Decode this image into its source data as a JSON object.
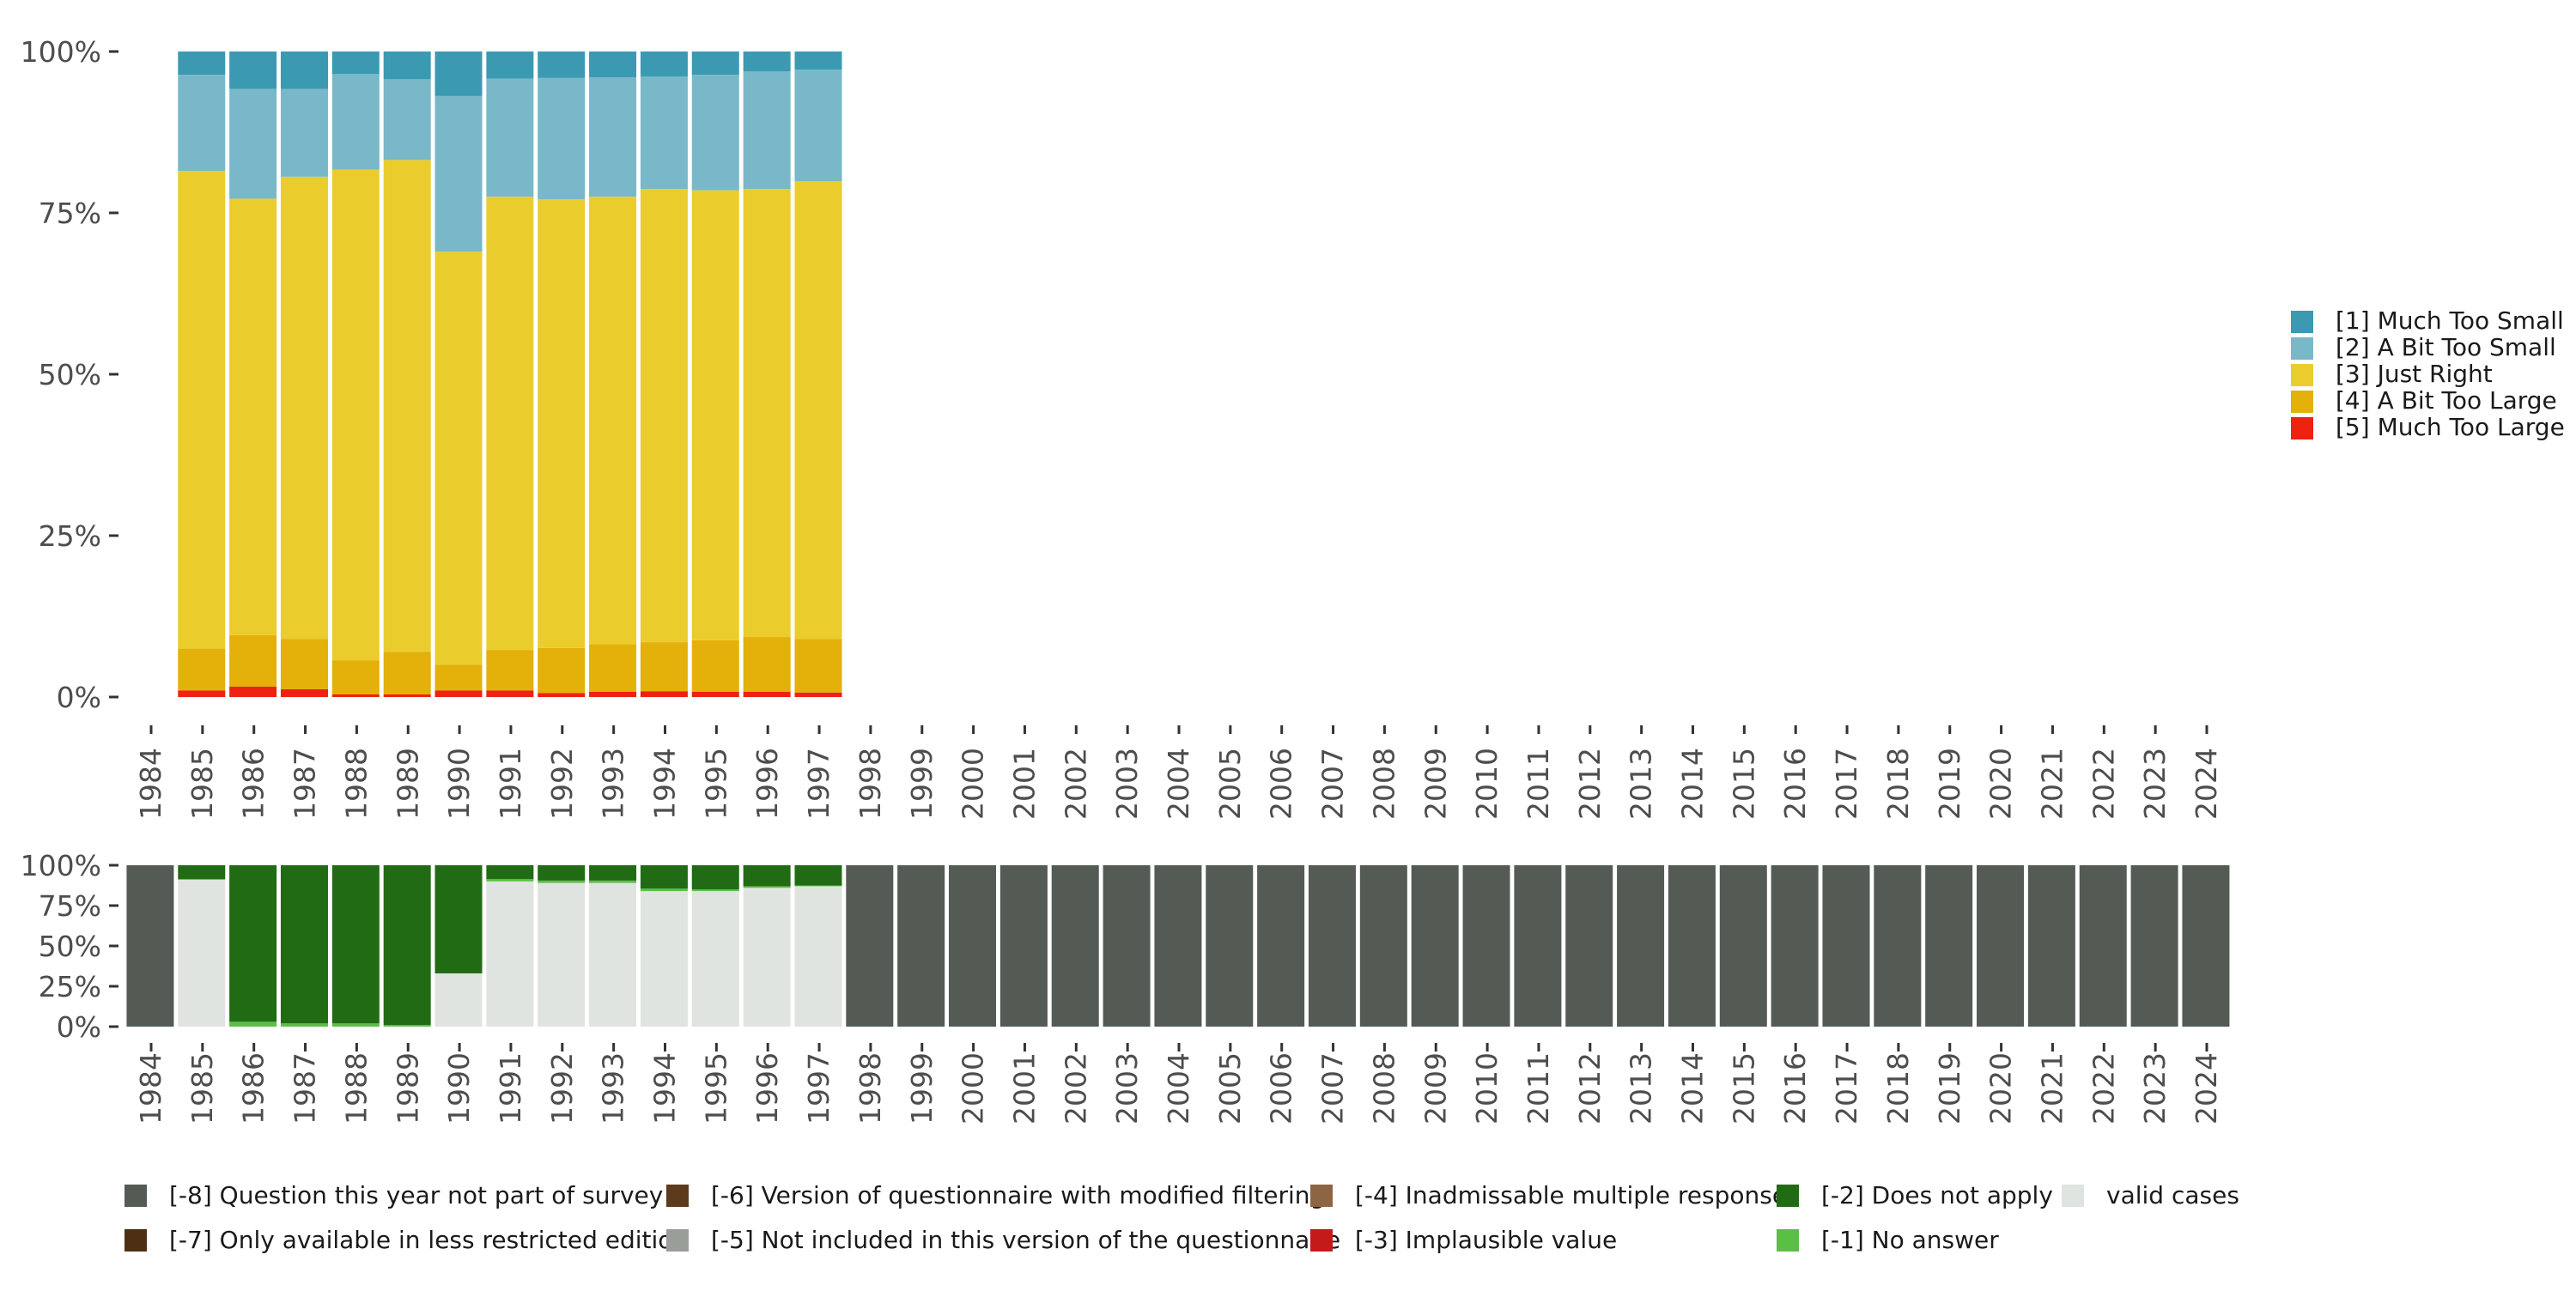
{
  "chart_data": [
    {
      "type": "bar",
      "stacked": true,
      "normalized": true,
      "title": "",
      "xlabel": "",
      "ylabel": "",
      "ylim": [
        0,
        100
      ],
      "y_tick_labels": [
        "0%",
        "25%",
        "50%",
        "75%",
        "100%"
      ],
      "categories": [
        "1984",
        "1985",
        "1986",
        "1987",
        "1988",
        "1989",
        "1990",
        "1991",
        "1992",
        "1993",
        "1994",
        "1995",
        "1996",
        "1997",
        "1998",
        "1999",
        "2000",
        "2001",
        "2002",
        "2003",
        "2004",
        "2005",
        "2006",
        "2007",
        "2008",
        "2009",
        "2010",
        "2011",
        "2012",
        "2013",
        "2014",
        "2015",
        "2016",
        "2017",
        "2018",
        "2019",
        "2020",
        "2021",
        "2022",
        "2023",
        "2024"
      ],
      "legend_position": "right",
      "series": [
        {
          "name": "[5] Much Too Large",
          "color": "#ee2211",
          "values": [
            null,
            1.0,
            1.6,
            1.2,
            0.4,
            0.4,
            1.0,
            1.0,
            0.6,
            0.8,
            0.9,
            0.8,
            0.8,
            0.7,
            null,
            null,
            null,
            null,
            null,
            null,
            null,
            null,
            null,
            null,
            null,
            null,
            null,
            null,
            null,
            null,
            null,
            null,
            null,
            null,
            null,
            null,
            null,
            null,
            null,
            null,
            null
          ]
        },
        {
          "name": "[4] A Bit Too Large",
          "color": "#e3b10a",
          "values": [
            null,
            6.5,
            8.0,
            7.8,
            5.3,
            6.6,
            4.0,
            6.3,
            7.0,
            7.4,
            7.6,
            8.0,
            8.5,
            8.3,
            null,
            null,
            null,
            null,
            null,
            null,
            null,
            null,
            null,
            null,
            null,
            null,
            null,
            null,
            null,
            null,
            null,
            null,
            null,
            null,
            null,
            null,
            null,
            null,
            null,
            null,
            null
          ]
        },
        {
          "name": "[3] Just Right",
          "color": "#eacd2c",
          "values": [
            null,
            74.0,
            67.6,
            71.6,
            76.0,
            76.2,
            64.0,
            70.2,
            69.5,
            69.3,
            70.2,
            69.7,
            69.4,
            70.9,
            null,
            null,
            null,
            null,
            null,
            null,
            null,
            null,
            null,
            null,
            null,
            null,
            null,
            null,
            null,
            null,
            null,
            null,
            null,
            null,
            null,
            null,
            null,
            null,
            null,
            null,
            null
          ]
        },
        {
          "name": "[2] A Bit Too Small",
          "color": "#79b8c8",
          "values": [
            null,
            14.9,
            17.0,
            13.6,
            14.8,
            12.5,
            24.1,
            18.3,
            18.8,
            18.5,
            17.4,
            17.9,
            18.2,
            17.3,
            null,
            null,
            null,
            null,
            null,
            null,
            null,
            null,
            null,
            null,
            null,
            null,
            null,
            null,
            null,
            null,
            null,
            null,
            null,
            null,
            null,
            null,
            null,
            null,
            null,
            null,
            null
          ]
        },
        {
          "name": "[1] Much Too Small",
          "color": "#3b9ab2",
          "values": [
            null,
            3.6,
            5.8,
            5.8,
            3.5,
            4.3,
            6.9,
            4.2,
            4.1,
            4.0,
            3.9,
            3.6,
            3.1,
            2.8,
            null,
            null,
            null,
            null,
            null,
            null,
            null,
            null,
            null,
            null,
            null,
            null,
            null,
            null,
            null,
            null,
            null,
            null,
            null,
            null,
            null,
            null,
            null,
            null,
            null,
            null,
            null
          ]
        }
      ]
    },
    {
      "type": "bar",
      "stacked": true,
      "normalized": true,
      "title": "",
      "xlabel": "",
      "ylabel": "",
      "ylim": [
        0,
        100
      ],
      "y_tick_labels": [
        "0%",
        "25%",
        "50%",
        "75%",
        "100%"
      ],
      "categories": [
        "1984",
        "1985",
        "1986",
        "1987",
        "1988",
        "1989",
        "1990",
        "1991",
        "1992",
        "1993",
        "1994",
        "1995",
        "1996",
        "1997",
        "1998",
        "1999",
        "2000",
        "2001",
        "2002",
        "2003",
        "2004",
        "2005",
        "2006",
        "2007",
        "2008",
        "2009",
        "2010",
        "2011",
        "2012",
        "2013",
        "2014",
        "2015",
        "2016",
        "2017",
        "2018",
        "2019",
        "2020",
        "2021",
        "2022",
        "2023",
        "2024"
      ],
      "legend_position": "bottom",
      "series": [
        {
          "name": "valid cases",
          "color": "#e0e4e0",
          "values": [
            0,
            91,
            0,
            0,
            0,
            0,
            33,
            90,
            89,
            89,
            84,
            84,
            86,
            87,
            0,
            0,
            0,
            0,
            0,
            0,
            0,
            0,
            0,
            0,
            0,
            0,
            0,
            0,
            0,
            0,
            0,
            0,
            0,
            0,
            0,
            0,
            0,
            0,
            0,
            0,
            0
          ]
        },
        {
          "name": "[-1] No answer",
          "color": "#5cbf45",
          "values": [
            0,
            0.5,
            3,
            2,
            2,
            1,
            0,
            1.5,
            1.5,
            1.5,
            1.5,
            1,
            1,
            0.5,
            0,
            0,
            0,
            0,
            0,
            0,
            0,
            0,
            0,
            0,
            0,
            0,
            0,
            0,
            0,
            0,
            0,
            0,
            0,
            0,
            0,
            0,
            0,
            0,
            0,
            0,
            0
          ]
        },
        {
          "name": "[-2] Does not apply",
          "color": "#216b14",
          "values": [
            0,
            8.5,
            97,
            98,
            98,
            99,
            67,
            8.5,
            9.5,
            9.5,
            14.5,
            15,
            13,
            12.5,
            0,
            0,
            0,
            0,
            0,
            0,
            0,
            0,
            0,
            0,
            0,
            0,
            0,
            0,
            0,
            0,
            0,
            0,
            0,
            0,
            0,
            0,
            0,
            0,
            0,
            0,
            0
          ]
        },
        {
          "name": "[-3] Implausible value",
          "color": "#c41a1a",
          "values": [
            0,
            0,
            0,
            0,
            0,
            0,
            0,
            0,
            0,
            0,
            0,
            0,
            0,
            0,
            0,
            0,
            0,
            0,
            0,
            0,
            0,
            0,
            0,
            0,
            0,
            0,
            0,
            0,
            0,
            0,
            0,
            0,
            0,
            0,
            0,
            0,
            0,
            0,
            0,
            0,
            0
          ]
        },
        {
          "name": "[-4] Inadmissable multiple response",
          "color": "#8c6542",
          "values": [
            0,
            0,
            0,
            0,
            0,
            0,
            0,
            0,
            0,
            0,
            0,
            0,
            0,
            0,
            0,
            0,
            0,
            0,
            0,
            0,
            0,
            0,
            0,
            0,
            0,
            0,
            0,
            0,
            0,
            0,
            0,
            0,
            0,
            0,
            0,
            0,
            0,
            0,
            0,
            0,
            0
          ]
        },
        {
          "name": "[-5] Not included in this version of the questionnaire",
          "color": "#999e98",
          "values": [
            0,
            0,
            0,
            0,
            0,
            0,
            0,
            0,
            0,
            0,
            0,
            0,
            0,
            0,
            0,
            0,
            0,
            0,
            0,
            0,
            0,
            0,
            0,
            0,
            0,
            0,
            0,
            0,
            0,
            0,
            0,
            0,
            0,
            0,
            0,
            0,
            0,
            0,
            0,
            0,
            0
          ]
        },
        {
          "name": "[-6] Version of questionnaire with modified filtering",
          "color": "#5c3a1b",
          "values": [
            0,
            0,
            0,
            0,
            0,
            0,
            0,
            0,
            0,
            0,
            0,
            0,
            0,
            0,
            0,
            0,
            0,
            0,
            0,
            0,
            0,
            0,
            0,
            0,
            0,
            0,
            0,
            0,
            0,
            0,
            0,
            0,
            0,
            0,
            0,
            0,
            0,
            0,
            0,
            0,
            0
          ]
        },
        {
          "name": "[-7] Only available in less restricted edition",
          "color": "#4d2f14",
          "values": [
            0,
            0,
            0,
            0,
            0,
            0,
            0,
            0,
            0,
            0,
            0,
            0,
            0,
            0,
            0,
            0,
            0,
            0,
            0,
            0,
            0,
            0,
            0,
            0,
            0,
            0,
            0,
            0,
            0,
            0,
            0,
            0,
            0,
            0,
            0,
            0,
            0,
            0,
            0,
            0,
            0
          ]
        },
        {
          "name": "[-8] Question this year not part of survey",
          "color": "#545a54",
          "values": [
            100,
            0,
            0,
            0,
            0,
            0,
            0,
            0,
            0,
            0,
            0,
            0,
            0,
            0,
            100,
            100,
            100,
            100,
            100,
            100,
            100,
            100,
            100,
            100,
            100,
            100,
            100,
            100,
            100,
            100,
            100,
            100,
            100,
            100,
            100,
            100,
            100,
            100,
            100,
            100,
            100
          ]
        }
      ],
      "legend_order": [
        "[-8] Question this year not part of survey",
        "[-6] Version of questionnaire with modified filtering",
        "[-4] Inadmissable multiple response",
        "[-2] Does not apply",
        "valid cases",
        "[-7] Only available in less restricted edition",
        "[-5] Not included in this version of the questionnaire",
        "[-3] Implausible value",
        "[-1] No answer"
      ]
    }
  ],
  "top_legend_order": [
    "[1] Much Too Small",
    "[2] A Bit Too Small",
    "[3] Just Right",
    "[4] A Bit Too Large",
    "[5] Much Too Large"
  ]
}
